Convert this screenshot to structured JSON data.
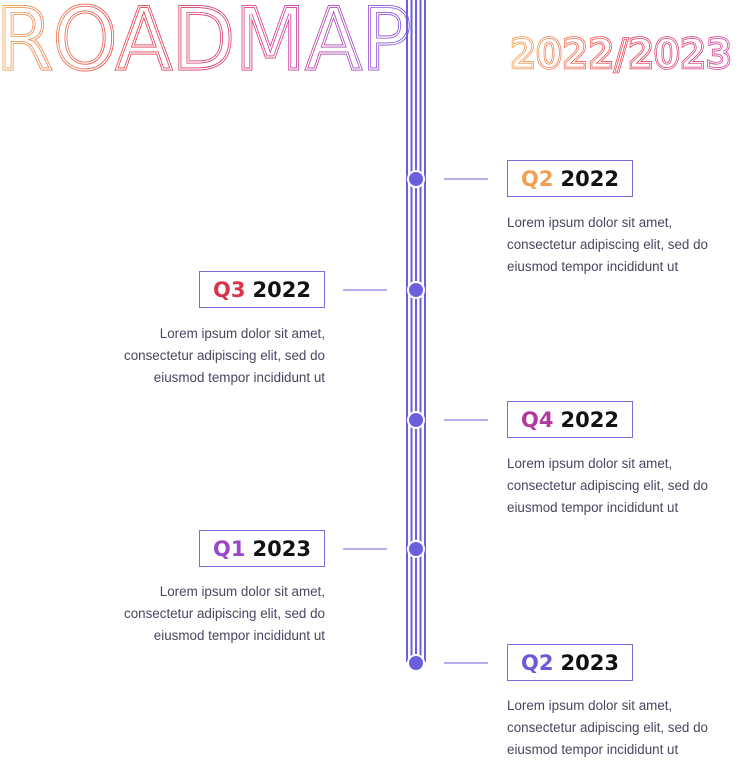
{
  "header": {
    "title": "ROADMAP",
    "subtitle": "2022/2023"
  },
  "colors": {
    "line": "#6b5fdc",
    "dot": "#6b5fdc",
    "title_gradient": [
      "#f0a04b",
      "#e0394f",
      "#d2368f",
      "#7b4fe0"
    ],
    "subtitle_gradient": [
      "#f0a04b",
      "#e0394f",
      "#c93a9a"
    ]
  },
  "milestones": [
    {
      "quarter": "Q2",
      "year": "2022",
      "quarter_color": "#f0a050",
      "description": "Lorem ipsum dolor sit amet, consectetur adipiscing elit, sed do eiusmod tempor incididunt ut"
    },
    {
      "quarter": "Q3",
      "year": "2022",
      "quarter_color": "#d8344a",
      "description": "Lorem ipsum dolor sit amet, consectetur adipiscing elit, sed do eiusmod tempor incididunt ut"
    },
    {
      "quarter": "Q4",
      "year": "2022",
      "quarter_color": "#b03a9e",
      "description": "Lorem ipsum dolor sit amet, consectetur adipiscing elit, sed do eiusmod tempor incididunt ut"
    },
    {
      "quarter": "Q1",
      "year": "2023",
      "quarter_color": "#9b48c7",
      "description": "Lorem ipsum dolor sit amet, consectetur adipiscing elit, sed do eiusmod tempor incididunt ut"
    },
    {
      "quarter": "Q2",
      "year": "2023",
      "quarter_color": "#6e58da",
      "description": "Lorem ipsum dolor sit amet, consectetur adipiscing elit, sed do eiusmod tempor incididunt ut"
    }
  ]
}
